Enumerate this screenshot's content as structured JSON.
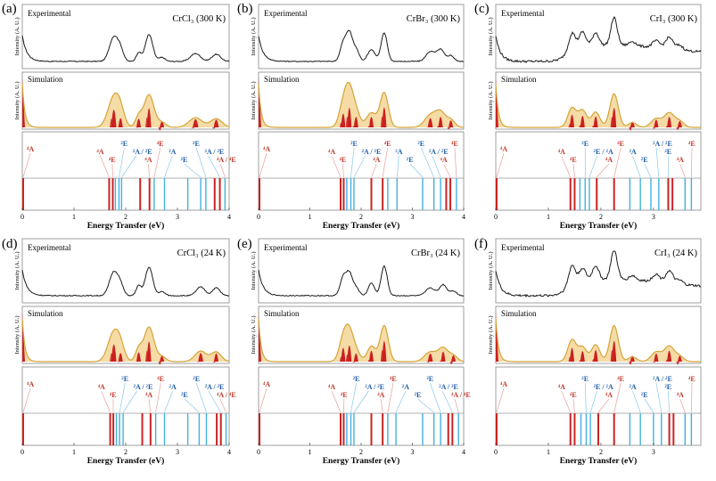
{
  "chart_data": [
    {
      "type": "line",
      "panel_label": "(a)",
      "material": "CrCl₃",
      "temperature": "300 K",
      "title": "CrCl₃ (300 K)",
      "experimental_label": "Experimental",
      "simulation_label": "Simulation",
      "ylabel": "Intensity (A. U.)",
      "xlabel": "Energy Transfer (eV)",
      "xlim": [
        0,
        4
      ],
      "xticks": [
        0,
        1,
        2,
        3,
        4
      ],
      "peaks": [
        {
          "x": 1.77,
          "height": 0.62,
          "width": 0.07
        },
        {
          "x": 1.9,
          "height": 0.25,
          "width": 0.05
        },
        {
          "x": 2.25,
          "height": 0.22,
          "width": 0.04
        },
        {
          "x": 2.45,
          "height": 0.68,
          "width": 0.06
        },
        {
          "x": 2.7,
          "height": 0.1,
          "width": 0.05
        },
        {
          "x": 3.35,
          "height": 0.2,
          "width": 0.08
        },
        {
          "x": 3.75,
          "height": 0.18,
          "width": 0.07
        }
      ],
      "levels": [
        {
          "x": 0.0,
          "sym": "4A"
        },
        {
          "x": 1.68,
          "sym": "4A"
        },
        {
          "x": 1.75,
          "sym": "4E"
        },
        {
          "x": 1.8,
          "sym": "2E"
        },
        {
          "x": 1.87,
          "sym": "2A"
        },
        {
          "x": 1.92,
          "sym": "2E"
        },
        {
          "x": 2.28,
          "sym": "4A"
        },
        {
          "x": 2.46,
          "sym": "4E"
        },
        {
          "x": 2.55,
          "sym": "2A"
        },
        {
          "x": 2.75,
          "sym": "2E"
        },
        {
          "x": 3.2,
          "sym": "2E"
        },
        {
          "x": 3.45,
          "sym": "2A"
        },
        {
          "x": 3.55,
          "sym": "2E"
        },
        {
          "x": 3.72,
          "sym": "4A"
        },
        {
          "x": 3.82,
          "sym": "4E"
        },
        {
          "x": 3.92,
          "sym": "2E"
        }
      ],
      "annotations": [
        "⁴A",
        "⁴A",
        "⁴E",
        "²E",
        "²A / ²E",
        "⁴A",
        "⁴E",
        "²A",
        "²E",
        "²E",
        "²A / ²E",
        "⁴A / ⁴E"
      ]
    },
    {
      "type": "line",
      "panel_label": "(b)",
      "material": "CrBr₃",
      "temperature": "300 K",
      "title": "CrBr₃ (300 K)",
      "experimental_label": "Experimental",
      "simulation_label": "Simulation",
      "ylabel": "Intensity (A. U.)",
      "xlabel": "Energy Transfer (eV)",
      "xlim": [
        0,
        4
      ],
      "xticks": [
        0,
        1,
        2,
        3,
        4
      ],
      "peaks": [
        {
          "x": 1.65,
          "height": 0.45,
          "width": 0.05
        },
        {
          "x": 1.77,
          "height": 0.7,
          "width": 0.05
        },
        {
          "x": 1.9,
          "height": 0.3,
          "width": 0.05
        },
        {
          "x": 2.2,
          "height": 0.3,
          "width": 0.06
        },
        {
          "x": 2.45,
          "height": 0.72,
          "width": 0.05
        },
        {
          "x": 3.35,
          "height": 0.25,
          "width": 0.07
        },
        {
          "x": 3.55,
          "height": 0.3,
          "width": 0.06
        },
        {
          "x": 3.75,
          "height": 0.15,
          "width": 0.05
        }
      ],
      "levels": [
        {
          "x": 0.0,
          "sym": "4A"
        },
        {
          "x": 1.6,
          "sym": "4A"
        },
        {
          "x": 1.66,
          "sym": "4E"
        },
        {
          "x": 1.72,
          "sym": "2E"
        },
        {
          "x": 1.8,
          "sym": "2A"
        },
        {
          "x": 1.86,
          "sym": "2E"
        },
        {
          "x": 2.2,
          "sym": "4A"
        },
        {
          "x": 2.42,
          "sym": "4E"
        },
        {
          "x": 2.52,
          "sym": "2A"
        },
        {
          "x": 2.7,
          "sym": "2E"
        },
        {
          "x": 3.2,
          "sym": "2E"
        },
        {
          "x": 3.42,
          "sym": "2A"
        },
        {
          "x": 3.55,
          "sym": "2E"
        },
        {
          "x": 3.66,
          "sym": "4A"
        },
        {
          "x": 3.74,
          "sym": "4E"
        },
        {
          "x": 3.86,
          "sym": "2E"
        }
      ],
      "annotations": [
        "⁴A",
        "⁴A",
        "⁴E",
        "²E",
        "²A / ²E",
        "⁴A",
        "⁴E",
        "²A",
        "²E",
        "²E",
        "²A / ²E",
        "⁴A",
        "⁴E"
      ]
    },
    {
      "type": "line",
      "panel_label": "(c)",
      "material": "CrI₃",
      "temperature": "300 K",
      "title": "CrI₃ (300 K)",
      "experimental_label": "Experimental",
      "simulation_label": "Simulation",
      "ylabel": "Intensity (A. U.)",
      "xlabel": "Energy Transfer (eV)",
      "xlim": [
        0,
        3.9
      ],
      "xticks": [
        0,
        1,
        2,
        3
      ],
      "peaks": [
        {
          "x": 1.45,
          "height": 0.4,
          "width": 0.05
        },
        {
          "x": 1.65,
          "height": 0.35,
          "width": 0.05
        },
        {
          "x": 1.9,
          "height": 0.32,
          "width": 0.05
        },
        {
          "x": 2.25,
          "height": 0.7,
          "width": 0.05
        },
        {
          "x": 2.6,
          "height": 0.1,
          "width": 0.05
        },
        {
          "x": 3.05,
          "height": 0.18,
          "width": 0.06
        },
        {
          "x": 3.3,
          "height": 0.3,
          "width": 0.06
        },
        {
          "x": 3.5,
          "height": 0.12,
          "width": 0.05
        }
      ],
      "levels": [
        {
          "x": 0.0,
          "sym": "4A"
        },
        {
          "x": 1.42,
          "sym": "4A"
        },
        {
          "x": 1.5,
          "sym": "4E"
        },
        {
          "x": 1.6,
          "sym": "2E"
        },
        {
          "x": 1.7,
          "sym": "2E"
        },
        {
          "x": 1.78,
          "sym": "2A"
        },
        {
          "x": 1.92,
          "sym": "4A"
        },
        {
          "x": 2.25,
          "sym": "4E"
        },
        {
          "x": 2.55,
          "sym": "2A"
        },
        {
          "x": 2.75,
          "sym": "2E"
        },
        {
          "x": 2.95,
          "sym": "2E"
        },
        {
          "x": 3.1,
          "sym": "2A"
        },
        {
          "x": 3.28,
          "sym": "4A"
        },
        {
          "x": 3.36,
          "sym": "4E"
        },
        {
          "x": 3.6,
          "sym": "2E"
        },
        {
          "x": 3.72,
          "sym": "2E"
        }
      ],
      "annotations": [
        "⁴A",
        "⁴A",
        "⁴E",
        "²E",
        "²E / ²A",
        "⁴A",
        "⁴E",
        "²A",
        "²E",
        "²A / ²E",
        "²E",
        "⁴A",
        "⁴E"
      ]
    },
    {
      "type": "line",
      "panel_label": "(d)",
      "material": "CrCl₃",
      "temperature": "24 K",
      "title": "CrCl₃ (24 K)",
      "experimental_label": "Experimental",
      "simulation_label": "Simulation",
      "ylabel": "Intensity (A. U.)",
      "xlabel": "Energy Transfer (eV)",
      "xlim": [
        0,
        4
      ],
      "xticks": [
        0,
        1,
        2,
        3,
        4
      ],
      "peaks": [
        {
          "x": 1.77,
          "height": 0.6,
          "width": 0.07
        },
        {
          "x": 1.9,
          "height": 0.22,
          "width": 0.05
        },
        {
          "x": 2.25,
          "height": 0.25,
          "width": 0.04
        },
        {
          "x": 2.45,
          "height": 0.72,
          "width": 0.06
        },
        {
          "x": 2.7,
          "height": 0.1,
          "width": 0.05
        },
        {
          "x": 3.45,
          "height": 0.22,
          "width": 0.07
        },
        {
          "x": 3.75,
          "height": 0.2,
          "width": 0.06
        }
      ],
      "levels": [
        {
          "x": 0.0,
          "sym": "4A"
        },
        {
          "x": 1.7,
          "sym": "4A"
        },
        {
          "x": 1.76,
          "sym": "4E"
        },
        {
          "x": 1.82,
          "sym": "2E"
        },
        {
          "x": 1.88,
          "sym": "2A"
        },
        {
          "x": 1.95,
          "sym": "2E"
        },
        {
          "x": 2.32,
          "sym": "4A"
        },
        {
          "x": 2.48,
          "sym": "4E"
        },
        {
          "x": 2.58,
          "sym": "2A"
        },
        {
          "x": 2.75,
          "sym": "2E"
        },
        {
          "x": 3.2,
          "sym": "2E"
        },
        {
          "x": 3.42,
          "sym": "2A"
        },
        {
          "x": 3.56,
          "sym": "2E"
        },
        {
          "x": 3.76,
          "sym": "4A"
        },
        {
          "x": 3.84,
          "sym": "4E"
        },
        {
          "x": 3.94,
          "sym": "2E"
        }
      ],
      "annotations": [
        "⁴A",
        "⁴A",
        "⁴E",
        "²E",
        "²A / ²E",
        "⁴A",
        "⁴E",
        "²A",
        "²E",
        "²E",
        "²A / ²E",
        "⁴A / ⁴E"
      ]
    },
    {
      "type": "line",
      "panel_label": "(e)",
      "material": "CrBr₃",
      "temperature": "24 K",
      "title": "CrBr₃ (24 K)",
      "experimental_label": "Experimental",
      "simulation_label": "Simulation",
      "ylabel": "Intensity (A. U.)",
      "xlabel": "Energy Transfer (eV)",
      "xlim": [
        0,
        4
      ],
      "xticks": [
        0,
        1,
        2,
        3,
        4
      ],
      "peaks": [
        {
          "x": 1.65,
          "height": 0.45,
          "width": 0.05
        },
        {
          "x": 1.77,
          "height": 0.55,
          "width": 0.05
        },
        {
          "x": 1.9,
          "height": 0.2,
          "width": 0.05
        },
        {
          "x": 2.2,
          "height": 0.32,
          "width": 0.05
        },
        {
          "x": 2.45,
          "height": 0.75,
          "width": 0.05
        },
        {
          "x": 3.35,
          "height": 0.2,
          "width": 0.07
        },
        {
          "x": 3.6,
          "height": 0.28,
          "width": 0.06
        },
        {
          "x": 3.8,
          "height": 0.12,
          "width": 0.05
        }
      ],
      "levels": [
        {
          "x": 0.0,
          "sym": "4A"
        },
        {
          "x": 1.6,
          "sym": "4A"
        },
        {
          "x": 1.66,
          "sym": "4E"
        },
        {
          "x": 1.72,
          "sym": "2E"
        },
        {
          "x": 1.8,
          "sym": "2A"
        },
        {
          "x": 1.86,
          "sym": "2E"
        },
        {
          "x": 2.2,
          "sym": "4A"
        },
        {
          "x": 2.42,
          "sym": "4E"
        },
        {
          "x": 2.52,
          "sym": "2A"
        },
        {
          "x": 2.68,
          "sym": "2E"
        },
        {
          "x": 3.2,
          "sym": "2E"
        },
        {
          "x": 3.42,
          "sym": "2A"
        },
        {
          "x": 3.55,
          "sym": "2E"
        },
        {
          "x": 3.7,
          "sym": "4A"
        },
        {
          "x": 3.78,
          "sym": "4E"
        },
        {
          "x": 3.9,
          "sym": "2E"
        }
      ],
      "annotations": [
        "⁴A",
        "⁴A",
        "⁴E",
        "²E",
        "²A / ²E",
        "⁴A",
        "⁴E",
        "²A",
        "²E",
        "²E",
        "²A / ²E",
        "⁴A / ⁴E"
      ]
    },
    {
      "type": "line",
      "panel_label": "(f)",
      "material": "CrI₃",
      "temperature": "24 K",
      "title": "CrI₃ (24 K)",
      "experimental_label": "Experimental",
      "simulation_label": "Simulation",
      "ylabel": "Intensity (A. U.)",
      "xlabel": "Energy Transfer (eV)",
      "xlim": [
        0,
        3.9
      ],
      "xticks": [
        0,
        1,
        2,
        3
      ],
      "peaks": [
        {
          "x": 1.45,
          "height": 0.45,
          "width": 0.05
        },
        {
          "x": 1.65,
          "height": 0.3,
          "width": 0.05
        },
        {
          "x": 1.9,
          "height": 0.35,
          "width": 0.05
        },
        {
          "x": 2.25,
          "height": 0.75,
          "width": 0.05
        },
        {
          "x": 2.6,
          "height": 0.1,
          "width": 0.05
        },
        {
          "x": 3.05,
          "height": 0.2,
          "width": 0.06
        },
        {
          "x": 3.3,
          "height": 0.32,
          "width": 0.06
        },
        {
          "x": 3.5,
          "height": 0.1,
          "width": 0.05
        }
      ],
      "levels": [
        {
          "x": 0.0,
          "sym": "4A"
        },
        {
          "x": 1.42,
          "sym": "4A"
        },
        {
          "x": 1.5,
          "sym": "4E"
        },
        {
          "x": 1.62,
          "sym": "2E"
        },
        {
          "x": 1.72,
          "sym": "2E"
        },
        {
          "x": 1.8,
          "sym": "2A"
        },
        {
          "x": 1.95,
          "sym": "4A"
        },
        {
          "x": 2.25,
          "sym": "4E"
        },
        {
          "x": 2.55,
          "sym": "2A"
        },
        {
          "x": 2.75,
          "sym": "2E"
        },
        {
          "x": 3.0,
          "sym": "2E"
        },
        {
          "x": 3.15,
          "sym": "2A"
        },
        {
          "x": 3.3,
          "sym": "4A"
        },
        {
          "x": 3.38,
          "sym": "4E"
        },
        {
          "x": 3.6,
          "sym": "2E"
        },
        {
          "x": 3.72,
          "sym": "2E"
        }
      ],
      "annotations": [
        "⁴A",
        "⁴A",
        "⁴E",
        "²E",
        "²E / ²A",
        "⁴A",
        "⁴E",
        "²A",
        "²E",
        "²A / ²E",
        "²E",
        "⁴A",
        "⁴E"
      ]
    }
  ],
  "colors": {
    "experimental_line": "#1a1a1a",
    "envelope_fill": "#f5dba5",
    "envelope_line": "#d4a437",
    "peak_fill": "#cc2020",
    "quartet_level": "#cc2222",
    "doublet_level": "#44b0e0",
    "quartet_text": "#c0392b",
    "doublet_text": "#1f5da8",
    "frame": "#888888"
  }
}
